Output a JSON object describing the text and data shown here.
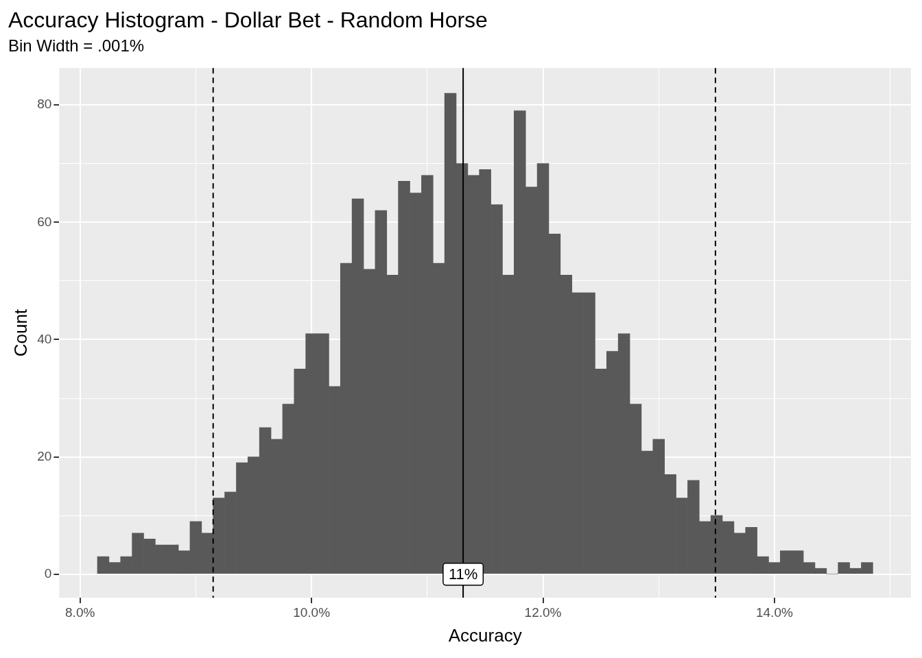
{
  "chart_data": {
    "type": "histogram",
    "title": "Accuracy Histogram - Dollar Bet - Random Horse",
    "subtitle": "Bin Width = .001%",
    "xlabel": "Accuracy",
    "ylabel": "Count",
    "color": "#595959",
    "bins": [
      8.15,
      8.25,
      8.35,
      8.45,
      8.55,
      8.65,
      8.75,
      8.85,
      8.95,
      9.05,
      9.15,
      9.25,
      9.35,
      9.45,
      9.55,
      9.65,
      9.75,
      9.85,
      9.95,
      10.05,
      10.15,
      10.25,
      10.35,
      10.45,
      10.55,
      10.65,
      10.75,
      10.85,
      10.95,
      11.05,
      11.15,
      11.25,
      11.35,
      11.45,
      11.55,
      11.65,
      11.75,
      11.85,
      11.95,
      12.05,
      12.15,
      12.25,
      12.35,
      12.45,
      12.55,
      12.65,
      12.75,
      12.85,
      12.95,
      13.05,
      13.15,
      13.25,
      13.35,
      13.45,
      13.55,
      13.65,
      13.75,
      13.85,
      13.95,
      14.05,
      14.15,
      14.25,
      14.35,
      14.45,
      14.55,
      14.65,
      14.75,
      14.85
    ],
    "values": [
      3,
      2,
      3,
      7,
      6,
      5,
      5,
      4,
      9,
      7,
      13,
      14,
      19,
      20,
      25,
      23,
      29,
      35,
      41,
      41,
      32,
      53,
      64,
      52,
      62,
      51,
      67,
      65,
      68,
      53,
      82,
      70,
      68,
      69,
      63,
      51,
      79,
      66,
      70,
      58,
      51,
      48,
      48,
      35,
      38,
      41,
      29,
      21,
      23,
      17,
      13,
      16,
      9,
      10,
      9,
      7,
      8,
      3,
      2,
      4,
      4,
      2,
      1,
      0,
      2,
      1,
      2
    ],
    "xlim": [
      7.82,
      15.18
    ],
    "ylim": [
      -4,
      86.3
    ],
    "xticks": [
      {
        "value": 8,
        "label": "8.0%"
      },
      {
        "value": 9,
        "label": null
      },
      {
        "value": 10,
        "label": "10.0%"
      },
      {
        "value": 11,
        "label": null
      },
      {
        "value": 12,
        "label": "12.0%"
      },
      {
        "value": 13,
        "label": null
      },
      {
        "value": 14,
        "label": "14.0%"
      },
      {
        "value": 15,
        "label": null
      }
    ],
    "yticks": [
      0,
      {
        "value": 10,
        "label": null
      },
      20,
      {
        "value": 30,
        "label": null
      },
      40,
      {
        "value": 50,
        "label": null
      },
      60,
      {
        "value": 70,
        "label": null
      },
      80
    ],
    "grid": true,
    "ref_lines": [
      {
        "axis": "x",
        "value": 9.15,
        "label": null,
        "color": "#000000",
        "line_style": "dashed"
      },
      {
        "axis": "x",
        "value": 11.31,
        "label": "11%",
        "color": "#000000",
        "line_style": "solid"
      },
      {
        "axis": "x",
        "value": 13.49,
        "label": null,
        "color": "#000000",
        "line_style": "dashed"
      }
    ]
  }
}
